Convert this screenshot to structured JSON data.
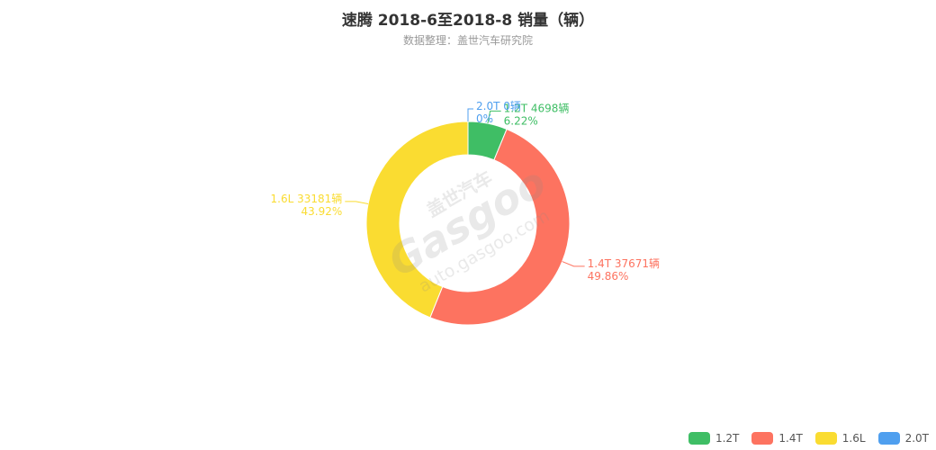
{
  "title": "速腾 2018-6至2018-8 销量（辆）",
  "subtitle": "数据整理：盖世汽车研究院",
  "watermark": {
    "brand_cn": "盖世汽车",
    "brand_en": "Gasgoo",
    "url": "auto.gasgoo.com"
  },
  "chart_data": {
    "type": "pie",
    "variant": "donut",
    "title": "速腾 2018-6至2018-8 销量（辆）",
    "subtitle": "数据整理：盖世汽车研究院",
    "categories": [
      "1.2T",
      "1.4T",
      "1.6L",
      "2.0T"
    ],
    "values": [
      4698,
      37671,
      33181,
      0
    ],
    "percent_labels": [
      "6.22%",
      "49.86%",
      "43.92%",
      "0%"
    ],
    "value_labels": [
      "1.2T 4698辆",
      "1.4T 37671辆",
      "1.6L 33181辆",
      "2.0T 0辆"
    ],
    "colors": [
      "#3fbe65",
      "#fd7360",
      "#fadc31",
      "#4f9fef"
    ],
    "legend_position": "bottom-right"
  }
}
